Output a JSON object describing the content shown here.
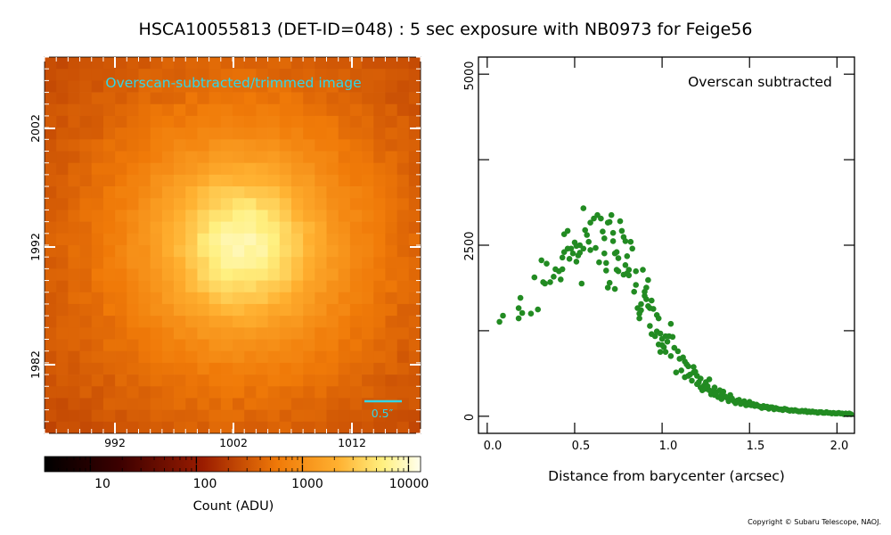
{
  "figure": {
    "title": "HSCA10055813 (DET-ID=048) :  5 sec exposure with NB0973 for Feige56",
    "copyright": "Copyright © Subaru Telescope, NAOJ."
  },
  "image_panel": {
    "label": "Overscan-subtracted/trimmed image",
    "label_color": "#33d6e6",
    "scale_bar_label": "0.5″",
    "scale_bar_color": "#33d6e6",
    "x_ticks": [
      "992",
      "1002",
      "1012"
    ],
    "y_ticks": [
      "1982",
      "1992",
      "2002"
    ]
  },
  "colorbar": {
    "scale": "log",
    "ticks": [
      "10",
      "100",
      "1000",
      "10000"
    ],
    "label": "Count (ADU)",
    "colormap": "afmhot"
  },
  "chart_data": {
    "type": "scatter",
    "annotation": "Overscan subtracted",
    "xlabel": "Distance from barycenter (arcsec)",
    "ylabel": "",
    "xlim": [
      -0.05,
      2.1
    ],
    "ylim": [
      -250,
      5250
    ],
    "x_ticks": [
      "0.0",
      "0.5",
      "1.0",
      "1.5",
      "2.0"
    ],
    "y_ticks": [
      "0",
      "2500",
      "5000"
    ],
    "grid": false,
    "marker_color": "#228b22",
    "points": [
      [
        0.07,
        1380
      ],
      [
        0.09,
        1470
      ],
      [
        0.18,
        1430
      ],
      [
        0.18,
        1580
      ],
      [
        0.19,
        1730
      ],
      [
        0.2,
        1510
      ],
      [
        0.25,
        1500
      ],
      [
        0.27,
        2030
      ],
      [
        0.29,
        1560
      ],
      [
        0.31,
        2280
      ],
      [
        0.32,
        1960
      ],
      [
        0.33,
        1940
      ],
      [
        0.34,
        2230
      ],
      [
        0.36,
        1960
      ],
      [
        0.38,
        2040
      ],
      [
        0.39,
        2150
      ],
      [
        0.41,
        2120
      ],
      [
        0.42,
        2000
      ],
      [
        0.43,
        2320
      ],
      [
        0.43,
        2150
      ],
      [
        0.44,
        2400
      ],
      [
        0.44,
        2660
      ],
      [
        0.46,
        2450
      ],
      [
        0.46,
        2710
      ],
      [
        0.47,
        2300
      ],
      [
        0.48,
        2450
      ],
      [
        0.49,
        2380
      ],
      [
        0.5,
        2540
      ],
      [
        0.51,
        2260
      ],
      [
        0.51,
        2490
      ],
      [
        0.52,
        2350
      ],
      [
        0.53,
        2500
      ],
      [
        0.53,
        2390
      ],
      [
        0.54,
        1940
      ],
      [
        0.55,
        3040
      ],
      [
        0.55,
        2450
      ],
      [
        0.56,
        2720
      ],
      [
        0.57,
        2650
      ],
      [
        0.58,
        2550
      ],
      [
        0.59,
        2430
      ],
      [
        0.59,
        2830
      ],
      [
        0.61,
        2890
      ],
      [
        0.62,
        2460
      ],
      [
        0.63,
        2940
      ],
      [
        0.64,
        2250
      ],
      [
        0.65,
        2890
      ],
      [
        0.66,
        2700
      ],
      [
        0.67,
        2600
      ],
      [
        0.67,
        2380
      ],
      [
        0.68,
        2240
      ],
      [
        0.68,
        2130
      ],
      [
        0.69,
        1880
      ],
      [
        0.69,
        2830
      ],
      [
        0.7,
        1950
      ],
      [
        0.7,
        2840
      ],
      [
        0.71,
        2940
      ],
      [
        0.72,
        2680
      ],
      [
        0.72,
        2560
      ],
      [
        0.73,
        1860
      ],
      [
        0.73,
        2380
      ],
      [
        0.74,
        2400
      ],
      [
        0.74,
        2140
      ],
      [
        0.75,
        2120
      ],
      [
        0.75,
        2310
      ],
      [
        0.76,
        2850
      ],
      [
        0.77,
        2710
      ],
      [
        0.78,
        2620
      ],
      [
        0.78,
        2070
      ],
      [
        0.79,
        2210
      ],
      [
        0.79,
        2560
      ],
      [
        0.8,
        2340
      ],
      [
        0.8,
        2090
      ],
      [
        0.81,
        2060
      ],
      [
        0.81,
        2140
      ],
      [
        0.82,
        2550
      ],
      [
        0.83,
        2450
      ],
      [
        0.84,
        1820
      ],
      [
        0.85,
        2120
      ],
      [
        0.85,
        1920
      ],
      [
        0.86,
        1580
      ],
      [
        0.87,
        1500
      ],
      [
        0.87,
        1430
      ],
      [
        0.88,
        1550
      ],
      [
        0.88,
        1640
      ],
      [
        0.89,
        2140
      ],
      [
        0.9,
        1760
      ],
      [
        0.9,
        1820
      ],
      [
        0.91,
        1880
      ],
      [
        0.91,
        1710
      ],
      [
        0.92,
        1990
      ],
      [
        0.92,
        1610
      ],
      [
        0.93,
        1580
      ],
      [
        0.93,
        1320
      ],
      [
        0.94,
        1690
      ],
      [
        0.94,
        1200
      ],
      [
        0.95,
        1570
      ],
      [
        0.96,
        1170
      ],
      [
        0.97,
        1240
      ],
      [
        0.97,
        1480
      ],
      [
        0.98,
        1050
      ],
      [
        0.98,
        1430
      ],
      [
        0.99,
        1210
      ],
      [
        0.99,
        940
      ],
      [
        1.0,
        1130
      ],
      [
        1.0,
        1040
      ],
      [
        1.01,
        1010
      ],
      [
        1.02,
        940
      ],
      [
        1.02,
        1170
      ],
      [
        1.03,
        1090
      ],
      [
        1.04,
        1170
      ],
      [
        1.05,
        880
      ],
      [
        1.05,
        1350
      ],
      [
        1.06,
        1160
      ],
      [
        1.07,
        1000
      ],
      [
        1.08,
        640
      ],
      [
        1.09,
        950
      ],
      [
        1.1,
        840
      ],
      [
        1.11,
        670
      ],
      [
        1.12,
        860
      ],
      [
        1.13,
        800
      ],
      [
        1.13,
        570
      ],
      [
        1.14,
        760
      ],
      [
        1.15,
        730
      ],
      [
        1.15,
        590
      ],
      [
        1.16,
        610
      ],
      [
        1.17,
        520
      ],
      [
        1.18,
        720
      ],
      [
        1.18,
        640
      ],
      [
        1.19,
        650
      ],
      [
        1.2,
        590
      ],
      [
        1.2,
        470
      ],
      [
        1.21,
        500
      ],
      [
        1.22,
        550
      ],
      [
        1.22,
        420
      ],
      [
        1.23,
        380
      ],
      [
        1.24,
        450
      ],
      [
        1.25,
        500
      ],
      [
        1.25,
        400
      ],
      [
        1.26,
        440
      ],
      [
        1.27,
        380
      ],
      [
        1.27,
        540
      ],
      [
        1.28,
        320
      ],
      [
        1.29,
        370
      ],
      [
        1.3,
        420
      ],
      [
        1.3,
        310
      ],
      [
        1.31,
        350
      ],
      [
        1.32,
        280
      ],
      [
        1.33,
        380
      ],
      [
        1.34,
        310
      ],
      [
        1.34,
        250
      ],
      [
        1.35,
        360
      ],
      [
        1.36,
        290
      ],
      [
        1.37,
        270
      ],
      [
        1.38,
        220
      ],
      [
        1.39,
        310
      ],
      [
        1.4,
        260
      ],
      [
        1.41,
        220
      ],
      [
        1.42,
        190
      ],
      [
        1.43,
        230
      ],
      [
        1.44,
        240
      ],
      [
        1.45,
        180
      ],
      [
        1.46,
        200
      ],
      [
        1.47,
        220
      ],
      [
        1.48,
        160
      ],
      [
        1.49,
        170
      ],
      [
        1.5,
        210
      ],
      [
        1.51,
        160
      ],
      [
        1.52,
        180
      ],
      [
        1.53,
        150
      ],
      [
        1.54,
        170
      ],
      [
        1.55,
        150
      ],
      [
        1.56,
        140
      ],
      [
        1.57,
        120
      ],
      [
        1.58,
        150
      ],
      [
        1.59,
        130
      ],
      [
        1.6,
        140
      ],
      [
        1.61,
        110
      ],
      [
        1.62,
        130
      ],
      [
        1.63,
        130
      ],
      [
        1.64,
        100
      ],
      [
        1.65,
        120
      ],
      [
        1.66,
        110
      ],
      [
        1.67,
        100
      ],
      [
        1.68,
        100
      ],
      [
        1.69,
        90
      ],
      [
        1.7,
        110
      ],
      [
        1.71,
        100
      ],
      [
        1.72,
        90
      ],
      [
        1.73,
        80
      ],
      [
        1.74,
        90
      ],
      [
        1.75,
        80
      ],
      [
        1.76,
        90
      ],
      [
        1.77,
        80
      ],
      [
        1.78,
        70
      ],
      [
        1.79,
        70
      ],
      [
        1.8,
        80
      ],
      [
        1.81,
        70
      ],
      [
        1.82,
        80
      ],
      [
        1.83,
        60
      ],
      [
        1.84,
        70
      ],
      [
        1.85,
        60
      ],
      [
        1.86,
        70
      ],
      [
        1.87,
        60
      ],
      [
        1.88,
        60
      ],
      [
        1.89,
        50
      ],
      [
        1.9,
        60
      ],
      [
        1.91,
        60
      ],
      [
        1.92,
        50
      ],
      [
        1.93,
        50
      ],
      [
        1.94,
        60
      ],
      [
        1.95,
        50
      ],
      [
        1.96,
        50
      ],
      [
        1.97,
        40
      ],
      [
        1.98,
        50
      ],
      [
        1.99,
        40
      ],
      [
        2.0,
        40
      ],
      [
        2.01,
        50
      ],
      [
        2.02,
        40
      ],
      [
        2.03,
        40
      ],
      [
        2.04,
        30
      ],
      [
        2.05,
        40
      ],
      [
        2.06,
        30
      ],
      [
        2.07,
        40
      ],
      [
        2.08,
        30
      ]
    ]
  }
}
